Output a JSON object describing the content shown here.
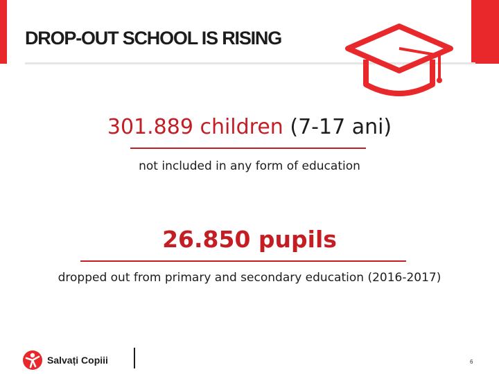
{
  "slide": {
    "title": "DROP-OUT SCHOOL IS RISING",
    "stat1": {
      "number": "301.889 children",
      "age": "(7-17 ani)"
    },
    "stat1_caption": "not included in any form of education",
    "stat2": "26.850 pupils",
    "stat2_caption": "dropped out from primary and secondary education (2016-2017)",
    "page_number": "6"
  },
  "logo": {
    "text": "Salvați Copiii",
    "icon": "salvati-copiii-logo-icon"
  },
  "decor": {
    "icon": "graduation-cap-icon"
  },
  "colors": {
    "accent": "#e8282b",
    "stat_red": "#c41e24",
    "text": "#1c1c1c"
  }
}
